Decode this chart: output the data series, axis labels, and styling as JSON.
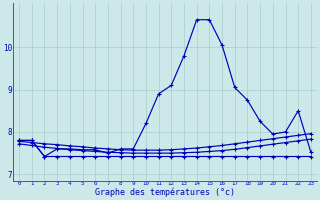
{
  "title": "Graphe des températures (°c)",
  "background_color": "#cce8e8",
  "grid_color": "#aacccc",
  "line_color": "#0000bb",
  "spine_color": "#555577",
  "hours": [
    0,
    1,
    2,
    3,
    4,
    5,
    6,
    7,
    8,
    9,
    10,
    11,
    12,
    13,
    14,
    15,
    16,
    17,
    18,
    19,
    20,
    21,
    22,
    23
  ],
  "temp_main": [
    7.8,
    7.8,
    7.42,
    7.6,
    7.6,
    7.58,
    7.58,
    7.5,
    7.6,
    7.6,
    8.2,
    8.9,
    9.1,
    9.8,
    10.65,
    10.65,
    10.05,
    9.05,
    8.75,
    8.25,
    7.95,
    8.0,
    8.5,
    7.52
  ],
  "temp_line2": [
    7.78,
    7.75,
    7.72,
    7.7,
    7.67,
    7.65,
    7.62,
    7.6,
    7.58,
    7.57,
    7.57,
    7.57,
    7.58,
    7.6,
    7.62,
    7.65,
    7.68,
    7.72,
    7.76,
    7.8,
    7.84,
    7.88,
    7.92,
    7.96
  ],
  "temp_line3": [
    7.72,
    7.68,
    7.64,
    7.61,
    7.58,
    7.56,
    7.54,
    7.52,
    7.51,
    7.5,
    7.5,
    7.5,
    7.5,
    7.51,
    7.52,
    7.54,
    7.56,
    7.59,
    7.63,
    7.67,
    7.71,
    7.75,
    7.79,
    7.83
  ],
  "temp_flat": [
    7.8,
    7.8,
    7.42,
    7.42,
    7.42,
    7.42,
    7.42,
    7.42,
    7.42,
    7.42,
    7.42,
    7.42,
    7.42,
    7.42,
    7.42,
    7.42,
    7.42,
    7.42,
    7.42,
    7.42,
    7.42,
    7.42,
    7.42,
    7.42
  ],
  "ylim": [
    6.85,
    11.05
  ],
  "yticks": [
    7,
    8,
    9,
    10
  ],
  "xlim": [
    -0.5,
    23.5
  ],
  "xtick_fontsize": 4.2,
  "ytick_fontsize": 5.5,
  "xlabel_fontsize": 6.0
}
